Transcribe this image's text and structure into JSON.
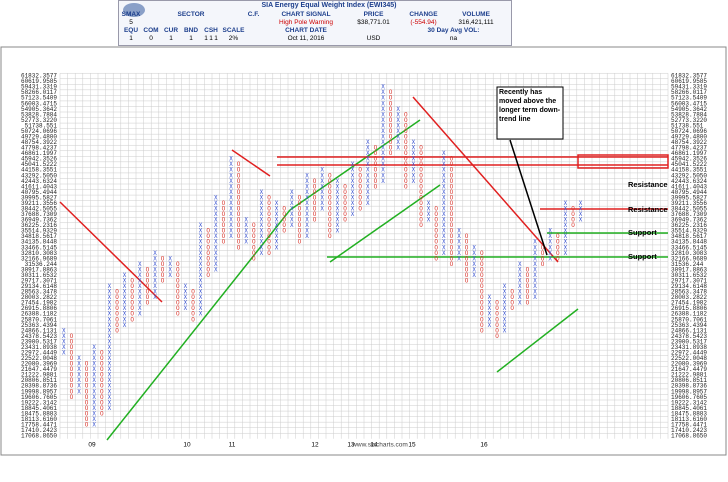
{
  "header": {
    "title": "SIA Energy Equal Weight Index (EWI345)",
    "smax_label": "SMAX",
    "smax": "5",
    "sector_label": "SECTOR",
    "cf_label": "C.F.",
    "signal_label": "CHART SIGNAL",
    "signal": "High Pole Warning",
    "price_label": "PRICE",
    "price": "$38,771.01",
    "change_label": "CHANGE",
    "change": "(-554.94)",
    "volume_label": "VOLUME",
    "volume": "316,421,111",
    "assets": [
      "EQU",
      "COM",
      "CUR",
      "BND",
      "CSH"
    ],
    "asset_values": [
      "1",
      "0",
      "1",
      "1",
      "1"
    ],
    "extra_values": [
      "1",
      "1"
    ],
    "scale_label": "SCALE",
    "scale": "2%",
    "date_label": "CHART DATE",
    "date": "Oct 11, 2016",
    "currency": "USD",
    "avg_vol_label": "30 Day Avg VOL:",
    "avg_vol": "na"
  },
  "chart_data": {
    "type": "point-and-figure",
    "log_scale": true,
    "grid": true,
    "colors": {
      "X": "#3b55d0",
      "O": "#d9342b"
    },
    "ylim": [
      17068.865,
      61832.3577
    ],
    "yticks": [
      61832.3577,
      60619.9585,
      59431.3319,
      58266.0117,
      57123.5409,
      56003.4715,
      54905.3642,
      53828.7884,
      {
        "value": 52773.322,
        "label": "52773.3220"
      },
      51738.551,
      50724.0696,
      {
        "value": 49729.48,
        "label": "49729.4800"
      },
      48754.3922,
      47798.4237,
      46861.1997,
      45942.3526,
      45041.5222,
      44158.3551,
      {
        "value": 43292.505,
        "label": "43292.5050"
      },
      42443.6324,
      41611.4043,
      40795.4944,
      39995.5827,
      39211.3556,
      38442.5055,
      37688.7309,
      36949.7362,
      36225.2316,
      35514.9329,
      34818.5617,
      34135.8448,
      33466.5145,
      32810.3083,
      32166.9689,
      31536.244,
      30917.8863,
      30311.6532,
      29717.3071,
      29134.6148,
      28563.3478,
      28003.2822,
      27454.1982,
      26915.8806,
      26388.1182,
      25870.7061,
      25363.4394,
      24866.1131,
      24378.5423,
      23900.5317,
      23431.8938,
      22972.4449,
      22522.0048,
      22080.3969,
      21647.4479,
      21222.9881,
      20806.8511,
      20398.8736,
      19998.8957,
      19606.7605,
      19222.3142,
      18845.4061,
      18475.8883,
      {
        "value": 18113.616,
        "label": "18113.6160"
      },
      17758.4471,
      17410.2423,
      {
        "value": 17068.865,
        "label": "17068.8650"
      }
    ],
    "years": [
      "09",
      "10",
      "11",
      "12",
      "13",
      "14",
      "15",
      "16"
    ],
    "annotations": {
      "note": "Recently has moved above the longer term down-trend line",
      "resistance": [
        "Resistance",
        "Resistance"
      ],
      "support": [
        "Support",
        "Support"
      ],
      "watermark": "www.siacharts.com"
    },
    "columns": [
      {
        "kind": "X",
        "high": 24866.1131,
        "low": 22972.4449
      },
      {
        "kind": "O",
        "high": 24378.5423,
        "low": 19606.7605
      },
      {
        "kind": "X",
        "high": 22522.0048,
        "low": 19998.8957
      },
      {
        "kind": "O",
        "high": 22080.3969,
        "low": 17758.4471
      },
      {
        "kind": "X",
        "high": 23431.8938,
        "low": 17758.4471
      },
      {
        "kind": "O",
        "high": 22972.4449,
        "low": 18475.8883
      },
      {
        "kind": "X",
        "high": 29134.6148,
        "low": 18845.4061
      },
      {
        "kind": "O",
        "high": 28563.3478,
        "low": 24866.1131
      },
      {
        "kind": "X",
        "high": 30311.6532,
        "low": 25363.4394
      },
      {
        "kind": "O",
        "high": 29717.3071,
        "low": 25870.7061
      },
      {
        "kind": "X",
        "high": 31536.244,
        "low": 26388.1182
      },
      {
        "kind": "O",
        "high": 30917.8863,
        "low": 27454.1982
      },
      {
        "kind": "X",
        "high": 32810.3083,
        "low": 28003.2822
      },
      {
        "kind": "O",
        "high": 32166.9689,
        "low": 29717.3071
      },
      {
        "kind": "X",
        "high": 32166.9689,
        "low": 30311.6532
      },
      {
        "kind": "O",
        "high": 31536.244,
        "low": 26388.1182
      },
      {
        "kind": "X",
        "high": 29134.6148,
        "low": 26915.8806
      },
      {
        "kind": "O",
        "high": 28563.3478,
        "low": 25870.7061
      },
      {
        "kind": "X",
        "high": 36225.2316,
        "low": 26388.1182
      },
      {
        "kind": "O",
        "high": 35514.9329,
        "low": 30311.6532
      },
      {
        "kind": "X",
        "high": 39995.5827,
        "low": 30917.8863
      },
      {
        "kind": "O",
        "high": 39211.3556,
        "low": 34135.8448
      },
      {
        "kind": "X",
        "high": 45942.3526,
        "low": 34818.5617
      },
      {
        "kind": "O",
        "high": 45041.5222,
        "low": 33466.5145
      },
      {
        "kind": "X",
        "high": 36949.7362,
        "low": 34135.8448
      },
      {
        "kind": "O",
        "high": 36225.2316,
        "low": 32166.9689
      },
      {
        "kind": "X",
        "high": 40795.4944,
        "low": 32810.3083
      },
      {
        "kind": "O",
        "high": 39995.5827,
        "low": 32810.3083
      },
      {
        "kind": "X",
        "high": 39211.3556,
        "low": 33466.5145
      },
      {
        "kind": "O",
        "high": 38442.5055,
        "low": 35514.9329
      },
      {
        "kind": "X",
        "high": 40795.4944,
        "low": 36225.2316
      },
      {
        "kind": "O",
        "high": 39995.5827,
        "low": 34135.8448
      },
      {
        "kind": "X",
        "high": 43292.505,
        "low": 34818.5617
      },
      {
        "kind": "O",
        "high": 42443.6324,
        "low": 36949.7362
      },
      {
        "kind": "X",
        "high": 44158.3551,
        "low": 38442.5055
      },
      {
        "kind": "O",
        "high": 43292.505,
        "low": 34818.5617
      },
      {
        "kind": "X",
        "high": 42443.6324,
        "low": 35514.9329
      },
      {
        "kind": "O",
        "high": 41611.4043,
        "low": 36949.7362
      },
      {
        "kind": "X",
        "high": 45041.5222,
        "low": 37688.7309
      },
      {
        "kind": "O",
        "high": 44158.3551,
        "low": 38442.5055
      },
      {
        "kind": "X",
        "high": 48754.3922,
        "low": 39211.3556
      },
      {
        "kind": "O",
        "high": 47798.4237,
        "low": 41611.4043
      },
      {
        "kind": "X",
        "high": 59431.3319,
        "low": 42443.6324
      },
      {
        "kind": "O",
        "high": 58266.0117,
        "low": 46861.1997
      },
      {
        "kind": "X",
        "high": 54905.3642,
        "low": 47798.4237
      },
      {
        "kind": "O",
        "high": 53828.7884,
        "low": 41611.4043
      },
      {
        "kind": "X",
        "high": 48754.3922,
        "low": 42443.6324
      },
      {
        "kind": "O",
        "high": 47798.4237,
        "low": 36225.2316
      },
      {
        "kind": "X",
        "high": 39211.3556,
        "low": 36949.7362
      },
      {
        "kind": "O",
        "high": 38442.5055,
        "low": 32166.9689
      },
      {
        "kind": "X",
        "high": 46861.1997,
        "low": 32810.3083
      },
      {
        "kind": "O",
        "high": 45942.3526,
        "low": 31536.244
      },
      {
        "kind": "X",
        "high": 35514.9329,
        "low": 32166.9689
      },
      {
        "kind": "O",
        "high": 34818.5617,
        "low": 29717.3071
      },
      {
        "kind": "X",
        "high": 33466.5145,
        "low": 30311.6532
      },
      {
        "kind": "O",
        "high": 32810.3083,
        "low": 24866.1131
      },
      {
        "kind": "X",
        "high": 28003.2822,
        "low": 25363.4394
      },
      {
        "kind": "O",
        "high": 27454.1982,
        "low": 24378.5423
      },
      {
        "kind": "X",
        "high": 29134.6148,
        "low": 24866.1131
      },
      {
        "kind": "O",
        "high": 28563.3478,
        "low": 26915.8806
      },
      {
        "kind": "X",
        "high": 31536.244,
        "low": 27454.1982
      },
      {
        "kind": "O",
        "high": 30917.8863,
        "low": 27454.1982
      },
      {
        "kind": "X",
        "high": 34135.8448,
        "low": 28003.2822
      },
      {
        "kind": "O",
        "high": 33466.5145,
        "low": 31536.244
      },
      {
        "kind": "X",
        "high": 35514.9329,
        "low": 32166.9689
      },
      {
        "kind": "O",
        "high": 34818.5617,
        "low": 32166.9689
      },
      {
        "kind": "X",
        "high": 39211.3556,
        "low": 32810.3083
      },
      {
        "kind": "O",
        "high": 38442.5055,
        "low": 36225.2316
      },
      {
        "kind": "X",
        "high": 39211.3556,
        "low": 36949.7362
      }
    ]
  }
}
